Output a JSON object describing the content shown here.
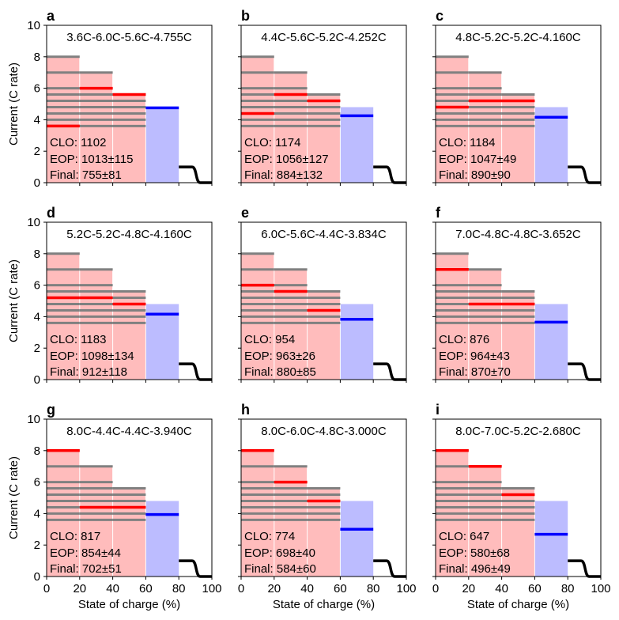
{
  "figure": {
    "y_axis_label": "Current (C rate)",
    "x_axis_label": "State of charge (%)",
    "x_ticks": [
      0,
      20,
      40,
      60,
      80,
      100
    ],
    "y_ticks": [
      0,
      2,
      4,
      6,
      8,
      10
    ],
    "colors": {
      "pink_fill": "#ffbcbc",
      "blue_fill": "#bcbcff",
      "grey_line": "#808080",
      "red_line": "#ff0000",
      "blue_line": "#0000ff",
      "black_line": "#000000"
    }
  },
  "chart_data": [
    {
      "type": "line",
      "panel": "a",
      "title": "3.6C-6.0C-5.6C-4.755C",
      "steps": [
        3.6,
        6.0,
        5.6
      ],
      "cc4": 4.755,
      "clo": "CLO: 1102",
      "eop": "EOP: 1013±115",
      "final": "Final: 755±81",
      "xlim": [
        0,
        100
      ],
      "ylim": [
        0,
        10
      ]
    },
    {
      "type": "line",
      "panel": "b",
      "title": "4.4C-5.6C-5.2C-4.252C",
      "steps": [
        4.4,
        5.6,
        5.2
      ],
      "cc4": 4.252,
      "clo": "CLO: 1174",
      "eop": "EOP: 1056±127",
      "final": "Final: 884±132",
      "xlim": [
        0,
        100
      ],
      "ylim": [
        0,
        10
      ]
    },
    {
      "type": "line",
      "panel": "c",
      "title": "4.8C-5.2C-5.2C-4.160C",
      "steps": [
        4.8,
        5.2,
        5.2
      ],
      "cc4": 4.16,
      "clo": "CLO: 1184",
      "eop": "EOP: 1047±49",
      "final": "Final: 890±90",
      "xlim": [
        0,
        100
      ],
      "ylim": [
        0,
        10
      ]
    },
    {
      "type": "line",
      "panel": "d",
      "title": "5.2C-5.2C-4.8C-4.160C",
      "steps": [
        5.2,
        5.2,
        4.8
      ],
      "cc4": 4.16,
      "clo": "CLO: 1183",
      "eop": "EOP: 1098±134",
      "final": "Final: 912±118",
      "xlim": [
        0,
        100
      ],
      "ylim": [
        0,
        10
      ]
    },
    {
      "type": "line",
      "panel": "e",
      "title": "6.0C-5.6C-4.4C-3.834C",
      "steps": [
        6.0,
        5.6,
        4.4
      ],
      "cc4": 3.834,
      "clo": "CLO: 954",
      "eop": "EOP: 963±26",
      "final": "Final: 880±85",
      "xlim": [
        0,
        100
      ],
      "ylim": [
        0,
        10
      ]
    },
    {
      "type": "line",
      "panel": "f",
      "title": "7.0C-4.8C-4.8C-3.652C",
      "steps": [
        7.0,
        4.8,
        4.8
      ],
      "cc4": 3.652,
      "clo": "CLO: 876",
      "eop": "EOP: 964±43",
      "final": "Final: 870±70",
      "xlim": [
        0,
        100
      ],
      "ylim": [
        0,
        10
      ]
    },
    {
      "type": "line",
      "panel": "g",
      "title": "8.0C-4.4C-4.4C-3.940C",
      "steps": [
        8.0,
        4.4,
        4.4
      ],
      "cc4": 3.94,
      "clo": "CLO: 817",
      "eop": "EOP: 854±44",
      "final": "Final: 702±51",
      "xlim": [
        0,
        100
      ],
      "ylim": [
        0,
        10
      ]
    },
    {
      "type": "line",
      "panel": "h",
      "title": "8.0C-6.0C-4.8C-3.000C",
      "steps": [
        8.0,
        6.0,
        4.8
      ],
      "cc4": 3.0,
      "clo": "CLO: 774",
      "eop": "EOP: 698±40",
      "final": "Final: 584±60",
      "xlim": [
        0,
        100
      ],
      "ylim": [
        0,
        10
      ]
    },
    {
      "type": "line",
      "panel": "i",
      "title": "8.0C-7.0C-5.2C-2.680C",
      "steps": [
        8.0,
        7.0,
        5.2
      ],
      "cc4": 2.68,
      "clo": "CLO: 647",
      "eop": "EOP: 580±68",
      "final": "Final: 496±49",
      "xlim": [
        0,
        100
      ],
      "ylim": [
        0,
        10
      ]
    }
  ]
}
